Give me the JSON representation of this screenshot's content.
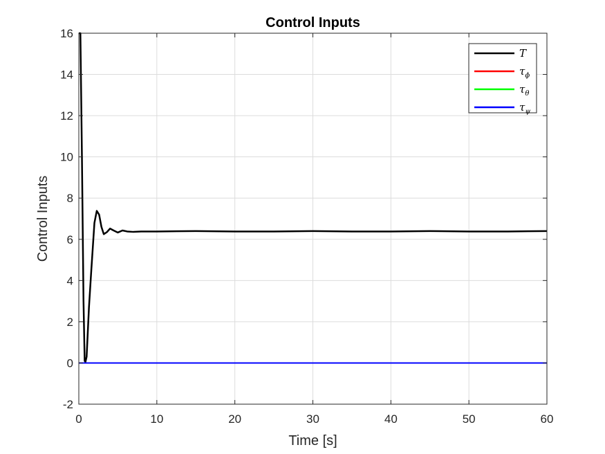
{
  "chart_data": {
    "type": "line",
    "title": "Control Inputs",
    "xlabel": "Time [s]",
    "ylabel": "Control Inputs",
    "xlim": [
      0,
      60
    ],
    "ylim": [
      -2,
      16
    ],
    "xticks": [
      0,
      10,
      20,
      30,
      40,
      50,
      60
    ],
    "yticks": [
      -2,
      0,
      2,
      4,
      6,
      8,
      10,
      12,
      14,
      16
    ],
    "grid": true,
    "legend_position": "top-right",
    "legend": [
      {
        "symbol": "T",
        "sub": "",
        "color": "#000000"
      },
      {
        "symbol": "τ",
        "sub": "ϕ",
        "color": "#ff0000"
      },
      {
        "symbol": "τ",
        "sub": "θ",
        "color": "#00ff00"
      },
      {
        "symbol": "τ",
        "sub": "ψ",
        "color": "#0000ff"
      }
    ],
    "series": [
      {
        "color": "#000000",
        "x": [
          0,
          0.2,
          0.4,
          0.6,
          0.75,
          0.85,
          1.0,
          1.3,
          1.6,
          2.0,
          2.3,
          2.6,
          2.9,
          3.2,
          3.6,
          4.0,
          4.5,
          5.0,
          5.6,
          6.2,
          7.0,
          8.0,
          10,
          15,
          20,
          25,
          30,
          35,
          40,
          45,
          50,
          55,
          60
        ],
        "y": [
          16,
          16,
          10,
          3,
          0.1,
          0.05,
          0.3,
          2.7,
          4.5,
          6.8,
          7.38,
          7.2,
          6.6,
          6.25,
          6.35,
          6.52,
          6.42,
          6.33,
          6.43,
          6.38,
          6.36,
          6.38,
          6.38,
          6.4,
          6.38,
          6.38,
          6.4,
          6.38,
          6.38,
          6.4,
          6.38,
          6.38,
          6.4
        ]
      },
      {
        "color": "#ff0000",
        "x": [
          0,
          60
        ],
        "y": [
          0,
          0
        ]
      },
      {
        "color": "#00ff00",
        "x": [
          0,
          60
        ],
        "y": [
          0,
          0
        ]
      },
      {
        "color": "#0000ff",
        "x": [
          0,
          60
        ],
        "y": [
          0,
          0
        ]
      }
    ]
  }
}
